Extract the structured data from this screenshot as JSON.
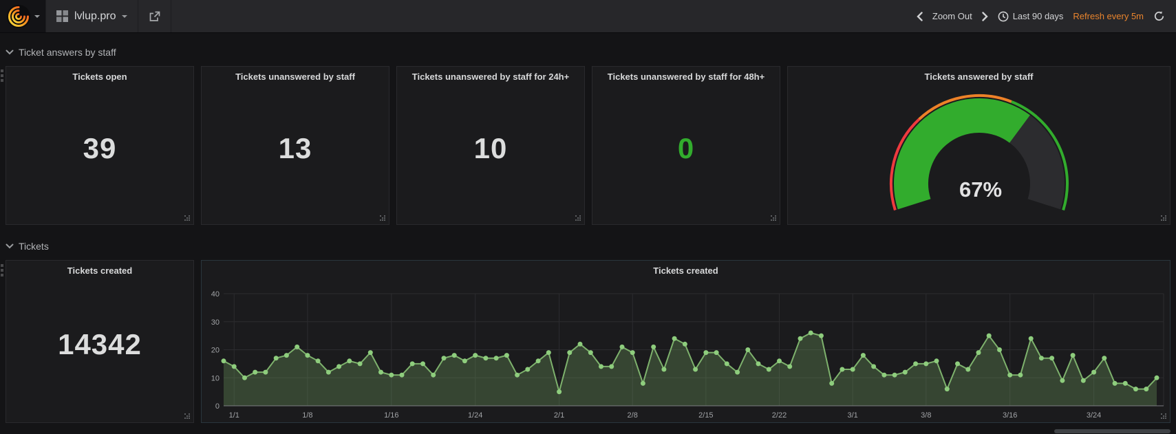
{
  "navbar": {
    "dashboard_title": "lvlup.pro",
    "zoom_out_label": "Zoom Out",
    "time_range_label": "Last 90 days",
    "refresh_label": "Refresh every 5m",
    "accent_orange": "#e9842d"
  },
  "rows": [
    {
      "title": "Ticket answers by staff"
    },
    {
      "title": "Tickets"
    }
  ],
  "stat_panels": [
    {
      "title": "Tickets open",
      "value": "39",
      "color": "#dcdddd"
    },
    {
      "title": "Tickets unanswered by staff",
      "value": "13",
      "color": "#dcdddd"
    },
    {
      "title": "Tickets unanswered by staff for 24h+",
      "value": "10",
      "color": "#dcdddd"
    },
    {
      "title": "Tickets unanswered by staff for 48h+",
      "value": "0",
      "color": "#32ac2d"
    },
    {
      "title": "Tickets created",
      "value": "14342",
      "color": "#dcdddd"
    }
  ],
  "gauge": {
    "title": "Tickets answered by staff",
    "display": "67%",
    "value": 67,
    "min": 0,
    "max": 100,
    "span_deg": 215,
    "thresholds": [
      {
        "upto": 30,
        "color": "#ef3a3e"
      },
      {
        "upto": 60,
        "color": "#ed8128"
      },
      {
        "upto": 100,
        "color": "#32ac2d"
      }
    ],
    "value_color": "#32ac2d",
    "track_color": "#2c2c2f"
  },
  "chart_data": {
    "type": "area",
    "title": "Tickets created",
    "ylabel": "",
    "xlabel": "",
    "ylim": [
      0,
      40
    ],
    "y_ticks": [
      0,
      10,
      20,
      30,
      40
    ],
    "grid": true,
    "line_color": "#7eb26d",
    "point_color": "#8ecd7d",
    "fill_color": "rgba(126,178,109,0.28)",
    "values": [
      16,
      14,
      10,
      12,
      12,
      17,
      18,
      21,
      18,
      16,
      12,
      14,
      16,
      15,
      19,
      12,
      11,
      11,
      15,
      15,
      11,
      17,
      18,
      16,
      18,
      17,
      17,
      18,
      11,
      13,
      16,
      19,
      5,
      19,
      22,
      19,
      14,
      14,
      21,
      19,
      8,
      21,
      13,
      24,
      22,
      13,
      19,
      19,
      15,
      12,
      20,
      15,
      13,
      16,
      14,
      24,
      26,
      25,
      8,
      13,
      13,
      18,
      14,
      11,
      11,
      12,
      15,
      15,
      16,
      6,
      15,
      13,
      19,
      25,
      20,
      11,
      11,
      24,
      17,
      17,
      9,
      18,
      9,
      12,
      17,
      8,
      8,
      6,
      6,
      10
    ],
    "ticks": [
      {
        "day": 1,
        "label": "1/1"
      },
      {
        "day": 8,
        "label": "1/8"
      },
      {
        "day": 16,
        "label": "1/16"
      },
      {
        "day": 24,
        "label": "1/24"
      },
      {
        "day": 32,
        "label": "2/1"
      },
      {
        "day": 39,
        "label": "2/8"
      },
      {
        "day": 46,
        "label": "2/15"
      },
      {
        "day": 53,
        "label": "2/22"
      },
      {
        "day": 60,
        "label": "3/1"
      },
      {
        "day": 67,
        "label": "3/8"
      },
      {
        "day": 75,
        "label": "3/16"
      },
      {
        "day": 83,
        "label": "3/24"
      }
    ]
  }
}
